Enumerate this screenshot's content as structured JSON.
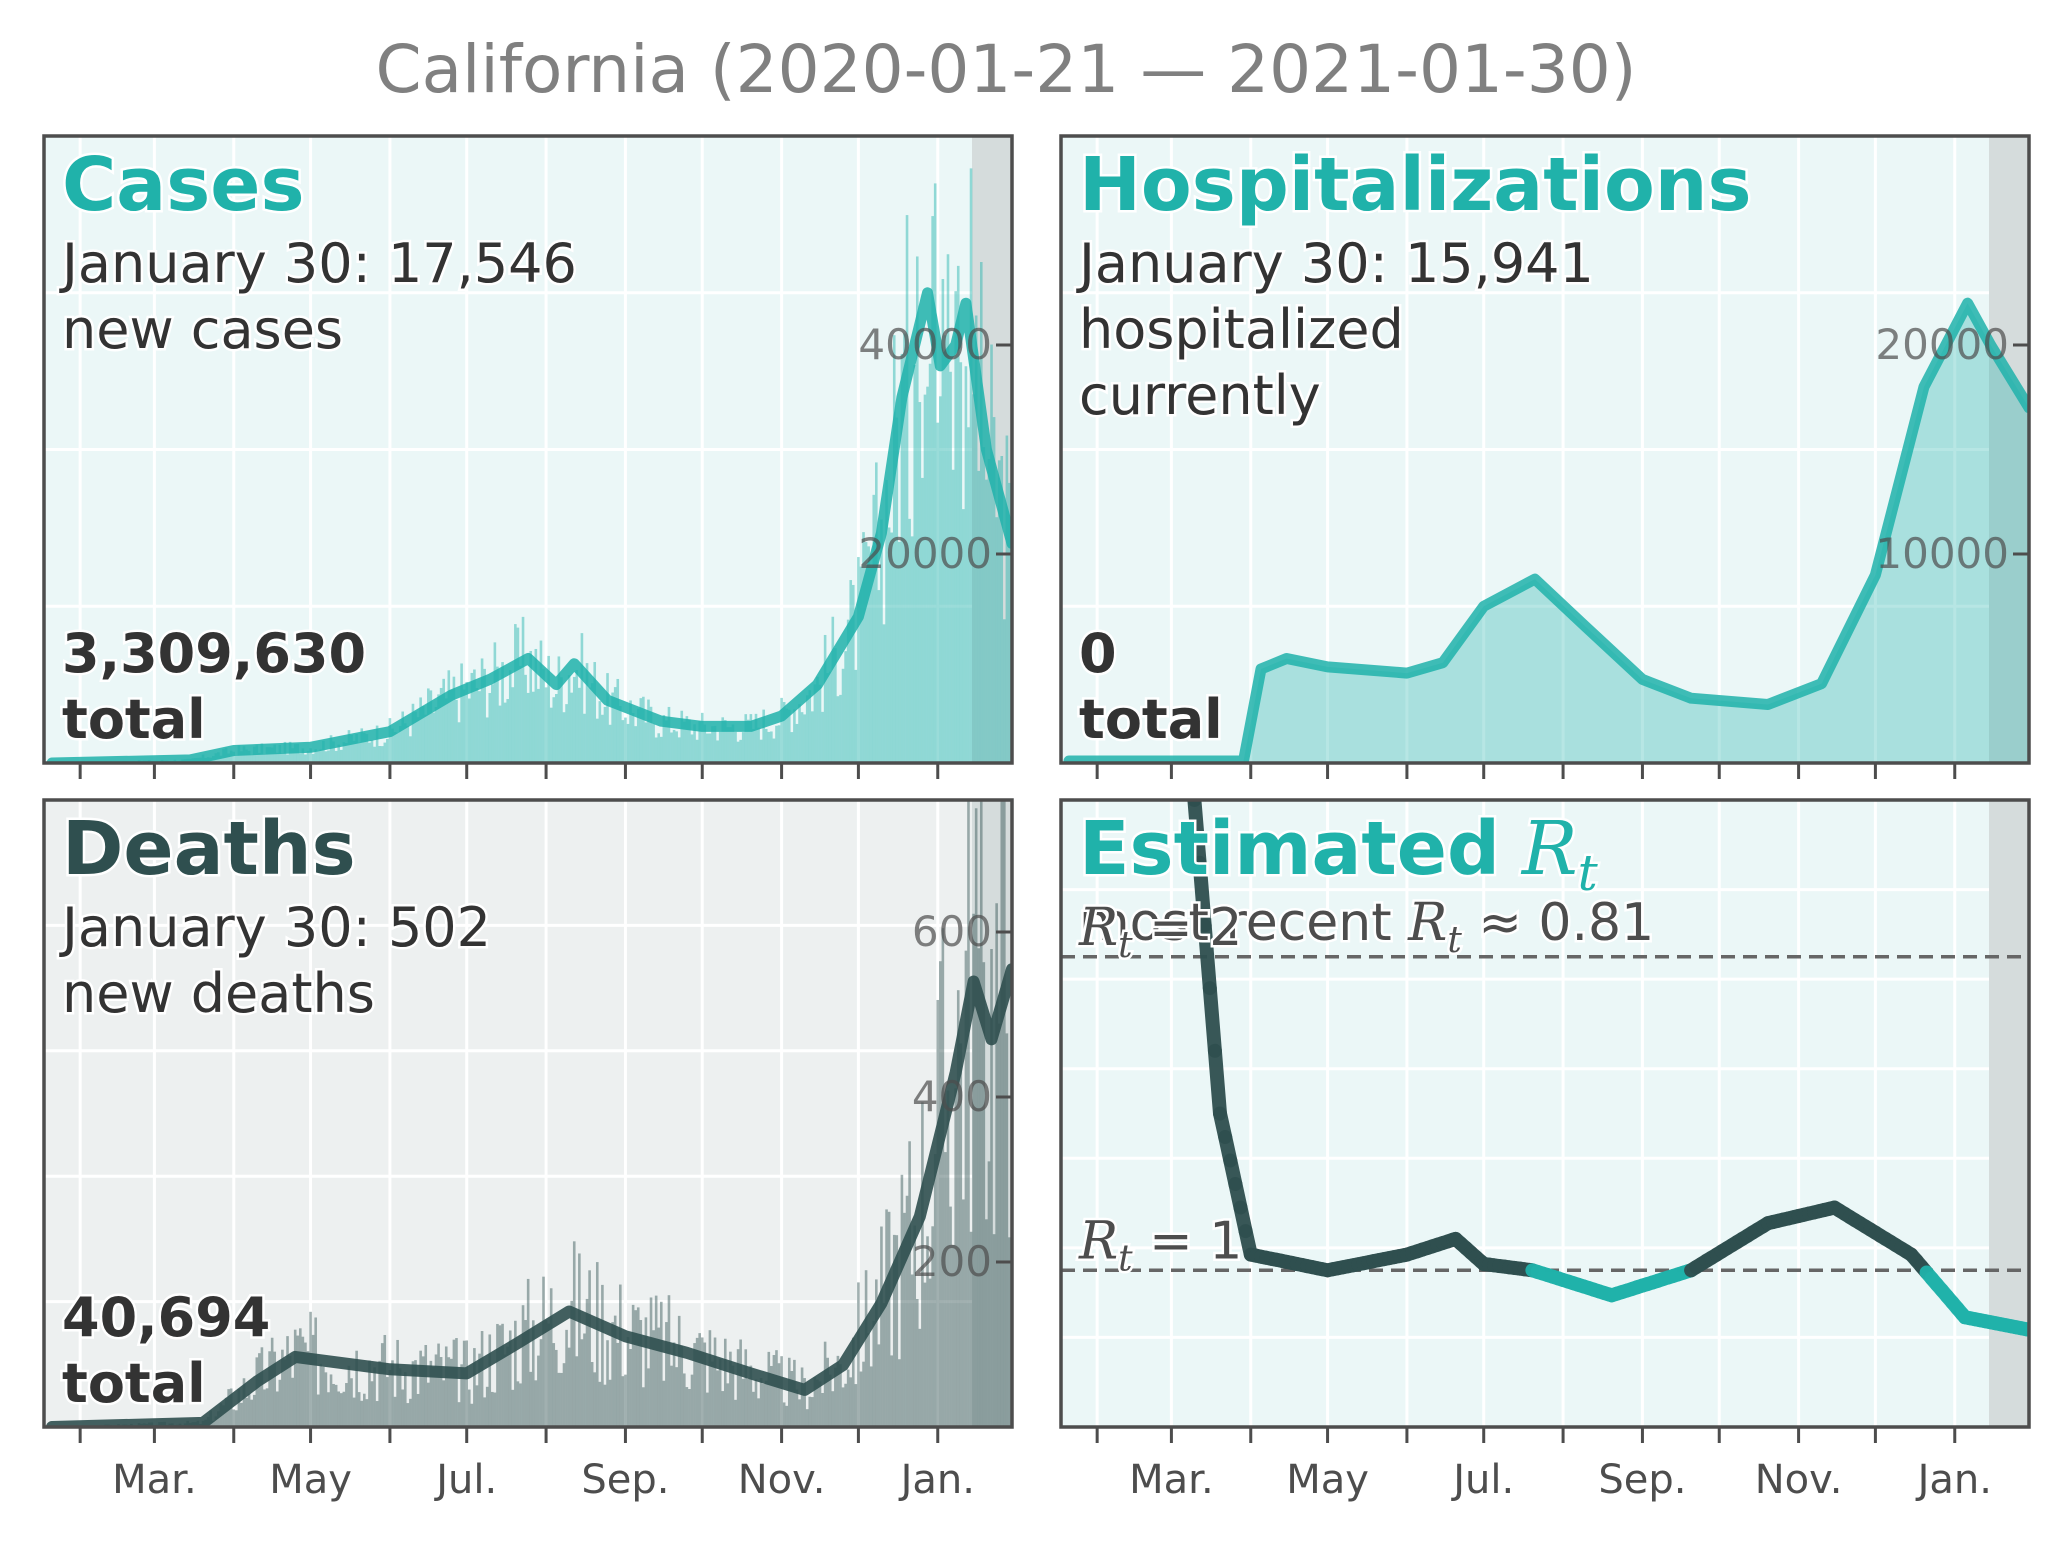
{
  "title": "California (2020-01-21 — 2021-01-30)",
  "month_ticks": [
    "Mar.",
    "May",
    "Jul.",
    "Sep.",
    "Nov.",
    "Jan."
  ],
  "panels": {
    "cases": {
      "heading": "Cases",
      "latest_line": "January 30: 17,546",
      "latest_desc": "new cases",
      "total_value": "3,309,630",
      "total_word": "total"
    },
    "hospitalizations": {
      "heading": "Hospitalizations",
      "latest_line": "January 30: 15,941",
      "latest_desc_1": "hospitalized",
      "latest_desc_2": "currently",
      "total_value": "0",
      "total_word": "total"
    },
    "deaths": {
      "heading": "Deaths",
      "latest_line": "January 30: 502",
      "latest_desc": "new deaths",
      "total_value": "40,694",
      "total_word": "total"
    },
    "rt": {
      "heading": "Estimated",
      "heading_symbol": "R",
      "heading_sub": "t",
      "recent_prefix": "most recent ",
      "recent_symbol": "R",
      "recent_sub": "t",
      "recent_value": " ≈ 0.81",
      "ref_line_2": "R_t = 2",
      "ref_line_1": "R_t = 1"
    }
  },
  "colors": {
    "teal": "#20b2aa",
    "dark": "#2f4f4f",
    "teal_bg": "#ebf7f7",
    "dark_bg": "#edf0f0",
    "shade": "#d5dcdc",
    "frame": "#4d4d4d"
  },
  "chart_data": [
    {
      "type": "bar",
      "name": "cases",
      "x_range": [
        "2020-01-21",
        "2021-01-30"
      ],
      "yticks": [
        20000,
        40000
      ],
      "ylim": [
        0,
        60000
      ],
      "smoothed_points": [
        [
          "2020-01-21",
          0
        ],
        [
          "2020-03-15",
          300
        ],
        [
          "2020-04-01",
          1200
        ],
        [
          "2020-05-01",
          1500
        ],
        [
          "2020-06-01",
          3000
        ],
        [
          "2020-06-25",
          6500
        ],
        [
          "2020-07-10",
          8000
        ],
        [
          "2020-07-25",
          10000
        ],
        [
          "2020-08-05",
          7500
        ],
        [
          "2020-08-12",
          9500
        ],
        [
          "2020-08-25",
          6000
        ],
        [
          "2020-09-15",
          4000
        ],
        [
          "2020-10-01",
          3500
        ],
        [
          "2020-10-20",
          3500
        ],
        [
          "2020-11-01",
          4500
        ],
        [
          "2020-11-15",
          7500
        ],
        [
          "2020-12-01",
          14000
        ],
        [
          "2020-12-10",
          22000
        ],
        [
          "2020-12-18",
          35000
        ],
        [
          "2020-12-28",
          45000
        ],
        [
          "2021-01-02",
          38000
        ],
        [
          "2021-01-08",
          40000
        ],
        [
          "2021-01-12",
          44000
        ],
        [
          "2021-01-20",
          30000
        ],
        [
          "2021-01-30",
          21000
        ]
      ],
      "bar_peak": 60000
    },
    {
      "type": "area",
      "name": "hospitalizations",
      "x_range": [
        "2020-01-21",
        "2021-01-30"
      ],
      "yticks": [
        10000,
        20000
      ],
      "ylim": [
        0,
        30000
      ],
      "data_start": "2020-03-29",
      "points": [
        [
          "2020-03-29",
          0
        ],
        [
          "2020-04-05",
          4500
        ],
        [
          "2020-04-15",
          5000
        ],
        [
          "2020-05-01",
          4600
        ],
        [
          "2020-06-01",
          4300
        ],
        [
          "2020-06-15",
          4800
        ],
        [
          "2020-07-01",
          7500
        ],
        [
          "2020-07-21",
          8800
        ],
        [
          "2020-08-10",
          6500
        ],
        [
          "2020-09-01",
          4000
        ],
        [
          "2020-09-20",
          3100
        ],
        [
          "2020-10-20",
          2800
        ],
        [
          "2020-11-10",
          3800
        ],
        [
          "2020-12-01",
          9000
        ],
        [
          "2020-12-20",
          18000
        ],
        [
          "2021-01-06",
          22000
        ],
        [
          "2021-01-15",
          20000
        ],
        [
          "2021-01-30",
          17000
        ]
      ]
    },
    {
      "type": "bar",
      "name": "deaths",
      "x_range": [
        "2020-01-21",
        "2021-01-30"
      ],
      "yticks": [
        200,
        400,
        600
      ],
      "ylim": [
        0,
        760
      ],
      "smoothed_points": [
        [
          "2020-01-21",
          0
        ],
        [
          "2020-03-20",
          5
        ],
        [
          "2020-04-10",
          55
        ],
        [
          "2020-04-25",
          85
        ],
        [
          "2020-06-01",
          70
        ],
        [
          "2020-07-01",
          65
        ],
        [
          "2020-07-20",
          100
        ],
        [
          "2020-08-10",
          140
        ],
        [
          "2020-09-01",
          110
        ],
        [
          "2020-09-25",
          90
        ],
        [
          "2020-10-20",
          65
        ],
        [
          "2020-11-10",
          45
        ],
        [
          "2020-11-25",
          75
        ],
        [
          "2020-12-10",
          150
        ],
        [
          "2020-12-25",
          255
        ],
        [
          "2021-01-08",
          430
        ],
        [
          "2021-01-15",
          540
        ],
        [
          "2021-01-22",
          470
        ],
        [
          "2021-01-30",
          555
        ]
      ]
    },
    {
      "type": "line",
      "name": "estimated_rt",
      "x_range": [
        "2020-01-21",
        "2021-01-30"
      ],
      "reference_lines": [
        2,
        1
      ],
      "ylim": [
        0.5,
        2.5
      ],
      "latest": 0.81,
      "points": [
        [
          "2020-03-01",
          2.9
        ],
        [
          "2020-03-10",
          2.5
        ],
        [
          "2020-03-20",
          1.5
        ],
        [
          "2020-04-01",
          1.05
        ],
        [
          "2020-05-01",
          1.0
        ],
        [
          "2020-06-01",
          1.05
        ],
        [
          "2020-06-20",
          1.1
        ],
        [
          "2020-07-01",
          1.02
        ],
        [
          "2020-07-20",
          1.0
        ],
        [
          "2020-08-20",
          0.92
        ],
        [
          "2020-09-20",
          1.0
        ],
        [
          "2020-10-20",
          1.15
        ],
        [
          "2020-11-15",
          1.2
        ],
        [
          "2020-12-15",
          1.05
        ],
        [
          "2021-01-05",
          0.85
        ],
        [
          "2021-01-30",
          0.81
        ]
      ]
    }
  ]
}
